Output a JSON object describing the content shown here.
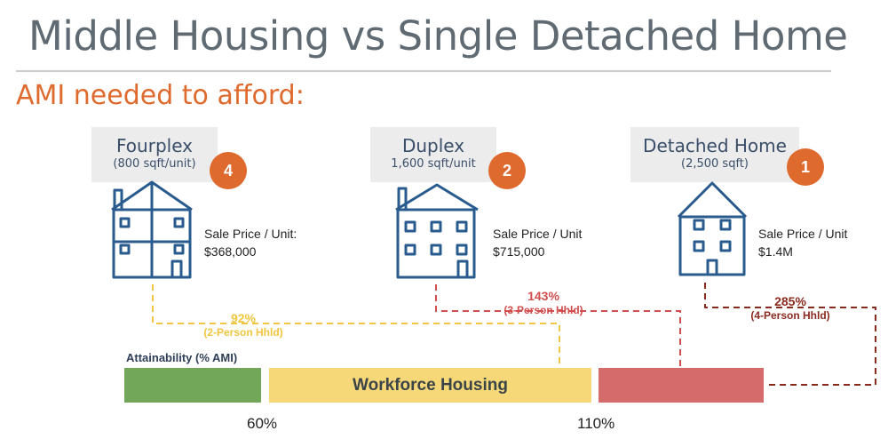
{
  "title": "Middle Housing vs Single Detached Home",
  "subtitle": "AMI needed to afford:",
  "homes": [
    {
      "name": "Fourplex",
      "size": "(800 sqft/unit)",
      "badge": "4",
      "price_label": "Sale Price / Unit:",
      "price_value": "$368,000",
      "ami_pct": "92%",
      "household": "(2-Person Hhld)",
      "color": "#f0c640"
    },
    {
      "name": "Duplex",
      "size": "1,600 sqft/unit",
      "badge": "2",
      "price_label": "Sale Price / Unit",
      "price_value": "$715,000",
      "ami_pct": "143%",
      "household": "(3-Person Hhld)",
      "color": "#d24e4e"
    },
    {
      "name": "Detached Home",
      "size": "(2,500 sqft)",
      "badge": "1",
      "price_label": "Sale Price / Unit",
      "price_value": "$1.4M",
      "ami_pct": "285%",
      "household": "(4-Person Hhld)",
      "color": "#8b2a1f"
    }
  ],
  "scale": {
    "label": "Attainability (% AMI)",
    "middle_band": "Workforce Housing",
    "ticks": [
      "60%",
      "110%"
    ]
  },
  "colors": {
    "accent": "#df6a2e",
    "house_stroke": "#2a5b8f",
    "green": "#72a658",
    "yellow": "#f7d878",
    "red": "#d66b6b"
  }
}
